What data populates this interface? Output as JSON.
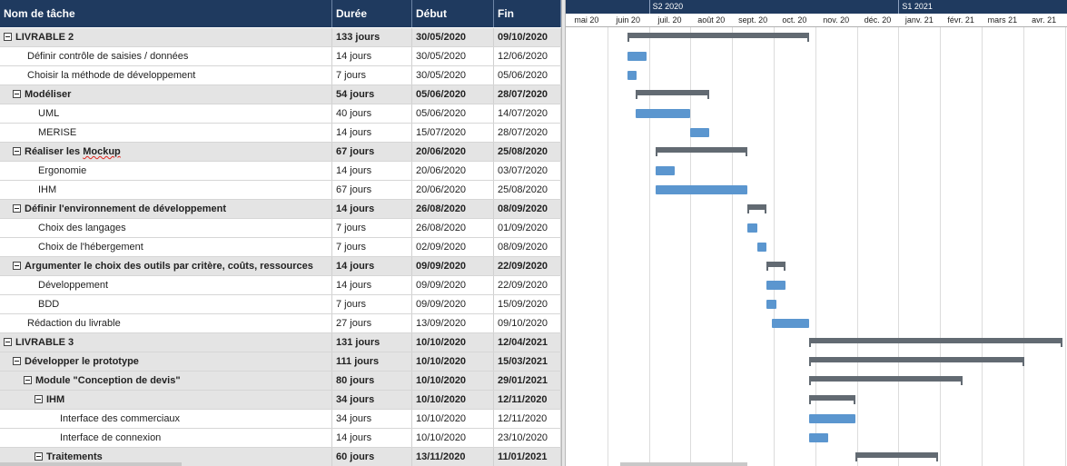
{
  "headers": {
    "name": "Nom de tâche",
    "duration": "Durée",
    "start": "Début",
    "end": "Fin"
  },
  "tasks": [
    {
      "level": 0,
      "summary": true,
      "name": "LIVRABLE 2",
      "duration": "133 jours",
      "start": "30/05/2020",
      "end": "09/10/2020"
    },
    {
      "level": 1,
      "summary": false,
      "name": "Définir contrôle de saisies / données",
      "duration": "14 jours",
      "start": "30/05/2020",
      "end": "12/06/2020"
    },
    {
      "level": 1,
      "summary": false,
      "name": "Choisir la méthode de développement",
      "duration": "7 jours",
      "start": "30/05/2020",
      "end": "05/06/2020"
    },
    {
      "level": 1,
      "summary": true,
      "name": "Modéliser",
      "duration": "54 jours",
      "start": "05/06/2020",
      "end": "28/07/2020"
    },
    {
      "level": 2,
      "summary": false,
      "name": "UML",
      "duration": "40 jours",
      "start": "05/06/2020",
      "end": "14/07/2020"
    },
    {
      "level": 2,
      "summary": false,
      "name": "MERISE",
      "duration": "14 jours",
      "start": "15/07/2020",
      "end": "28/07/2020"
    },
    {
      "level": 1,
      "summary": true,
      "name": "Réaliser les Mockup",
      "duration": "67 jours",
      "start": "20/06/2020",
      "end": "25/08/2020"
    },
    {
      "level": 2,
      "summary": false,
      "name": "Ergonomie",
      "duration": "14 jours",
      "start": "20/06/2020",
      "end": "03/07/2020"
    },
    {
      "level": 2,
      "summary": false,
      "name": "IHM",
      "duration": "67 jours",
      "start": "20/06/2020",
      "end": "25/08/2020"
    },
    {
      "level": 1,
      "summary": true,
      "name": "Définir l'environnement de développement",
      "duration": "14 jours",
      "start": "26/08/2020",
      "end": "08/09/2020"
    },
    {
      "level": 2,
      "summary": false,
      "name": "Choix des langages",
      "duration": "7 jours",
      "start": "26/08/2020",
      "end": "01/09/2020"
    },
    {
      "level": 2,
      "summary": false,
      "name": "Choix de l'hébergement",
      "duration": "7 jours",
      "start": "02/09/2020",
      "end": "08/09/2020"
    },
    {
      "level": 1,
      "summary": true,
      "name": "Argumenter le choix des outils par critère, coûts, ressources",
      "duration": "14 jours",
      "start": "09/09/2020",
      "end": "22/09/2020"
    },
    {
      "level": 2,
      "summary": false,
      "name": "Développement",
      "duration": "14 jours",
      "start": "09/09/2020",
      "end": "22/09/2020"
    },
    {
      "level": 2,
      "summary": false,
      "name": "BDD",
      "duration": "7 jours",
      "start": "09/09/2020",
      "end": "15/09/2020"
    },
    {
      "level": 1,
      "summary": false,
      "name": "Rédaction du livrable",
      "duration": "27 jours",
      "start": "13/09/2020",
      "end": "09/10/2020"
    },
    {
      "level": 0,
      "summary": true,
      "name": "LIVRABLE 3",
      "duration": "131 jours",
      "start": "10/10/2020",
      "end": "12/04/2021"
    },
    {
      "level": 1,
      "summary": true,
      "name": "Développer le prototype",
      "duration": "111 jours",
      "start": "10/10/2020",
      "end": "15/03/2021"
    },
    {
      "level": 2,
      "summary": true,
      "name": "Module \"Conception de devis\"",
      "duration": "80 jours",
      "start": "10/10/2020",
      "end": "29/01/2021"
    },
    {
      "level": 3,
      "summary": true,
      "name": "IHM",
      "duration": "34 jours",
      "start": "10/10/2020",
      "end": "12/11/2020"
    },
    {
      "level": 4,
      "summary": false,
      "name": "Interface des commerciaux",
      "duration": "34 jours",
      "start": "10/10/2020",
      "end": "12/11/2020"
    },
    {
      "level": 4,
      "summary": false,
      "name": "Interface de connexion",
      "duration": "14 jours",
      "start": "10/10/2020",
      "end": "23/10/2020"
    },
    {
      "level": 3,
      "summary": true,
      "name": "Traitements",
      "duration": "60 jours",
      "start": "13/11/2020",
      "end": "11/01/2021"
    }
  ],
  "timeline": {
    "periods": [
      "S2 2020",
      "S1 2021"
    ],
    "months": [
      "mai 20",
      "juin 20",
      "juil. 20",
      "août 20",
      "sept. 20",
      "oct. 20",
      "nov. 20",
      "déc. 20",
      "janv. 21",
      "févr. 21",
      "mars 21",
      "avr. 21"
    ]
  },
  "colors": {
    "header": "#1f3a5f",
    "task_bar": "#5b96cf",
    "summary_bar": "#626a72",
    "summary_row": "#e4e4e4"
  }
}
